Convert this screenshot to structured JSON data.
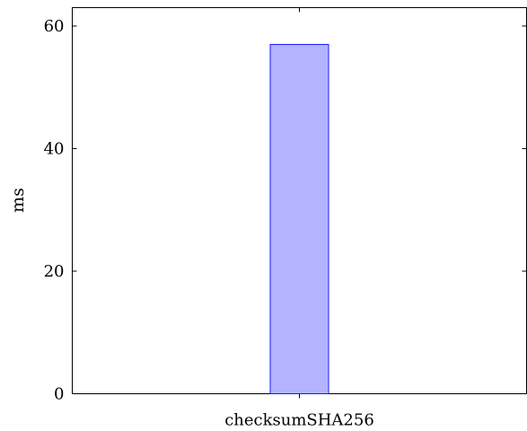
{
  "chart_data": {
    "type": "bar",
    "categories": [
      "checksumSHA256"
    ],
    "values": [
      57
    ],
    "xlabel": "",
    "ylabel": "ms",
    "ylim": [
      0,
      63
    ],
    "yticks": [
      0,
      20,
      40,
      60
    ],
    "grid": false,
    "legend": "none",
    "colors": {
      "bar_fill": "#b3b3ff",
      "bar_stroke": "#1a1aff",
      "axis": "#000000"
    }
  }
}
